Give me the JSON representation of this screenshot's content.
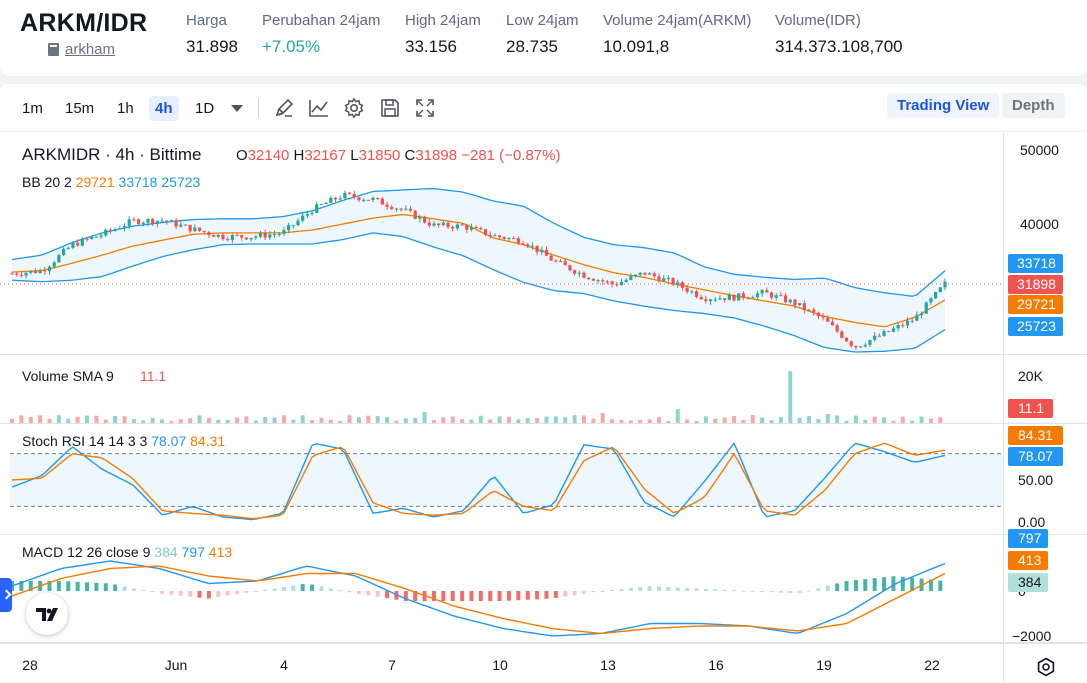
{
  "ticker": {
    "symbol": "ARKM/IDR",
    "token_link": "arkham",
    "stats": [
      {
        "label": "Harga",
        "value": "31.898",
        "up": false
      },
      {
        "label": "Perubahan 24jam",
        "value": "+7.05%",
        "up": true
      },
      {
        "label": "High 24jam",
        "value": "33.156",
        "up": false
      },
      {
        "label": "Low 24jam",
        "value": "28.735",
        "up": false
      },
      {
        "label": "Volume 24jam(ARKM)",
        "value": "10.091,8",
        "up": false
      },
      {
        "label": "Volume(IDR)",
        "value": "314.373.108,700",
        "up": false
      }
    ]
  },
  "toolbar": {
    "timeframes": [
      "1m",
      "15m",
      "1h",
      "4h",
      "1D"
    ],
    "active_timeframe": "4h",
    "icons": [
      "draw-icon",
      "indicator-icon",
      "settings-icon",
      "save-icon",
      "fullscreen-icon"
    ],
    "trading_view_label": "Trading View",
    "depth_label": "Depth"
  },
  "colors": {
    "up": "#26a69a",
    "down": "#ef5350",
    "bb_basis": "#f57c00",
    "bb_band": "#2196f3",
    "stoch_k": "#2196f3",
    "stoch_d": "#f57c00",
    "accent": "#2962ff"
  },
  "chart_data": {
    "type": "candlestick",
    "main": {
      "title": "ARKMIDR · 4h · Bittime",
      "ohlc": {
        "o_label": "O",
        "o": "32140",
        "h_label": "H",
        "h": "32167",
        "l_label": "L",
        "l": "31850",
        "c_label": "C",
        "c": "31898",
        "change": "−281 (−0.87%)"
      },
      "y_ticks": [
        "50000",
        "40000"
      ],
      "y_tick_values": [
        50000,
        40000
      ],
      "badges": [
        {
          "text": "33718",
          "value": 33718,
          "color": "#2196f3"
        },
        {
          "text": "31898",
          "value": 31898,
          "color": "#ef5350"
        },
        {
          "text": "29721",
          "value": 29721,
          "color": "#f57c00"
        },
        {
          "text": "25723",
          "value": 25723,
          "color": "#2196f3"
        }
      ],
      "bb": {
        "label": "BB 20 2",
        "basis": "29721",
        "upper": "33718",
        "lower": "25723"
      },
      "bb_upper_series": [
        35200,
        35800,
        37500,
        38800,
        39700,
        40200,
        40600,
        40700,
        40700,
        41000,
        41800,
        43200,
        44400,
        44600,
        44800,
        44300,
        43100,
        42400,
        40100,
        38200,
        37200,
        36800,
        36100,
        34200,
        33200,
        32800,
        32500,
        32700,
        31400,
        30700,
        30200,
        33700
      ],
      "bb_basis_series": [
        33500,
        33700,
        34700,
        35800,
        37000,
        37800,
        38600,
        38800,
        38800,
        38800,
        39200,
        40000,
        40800,
        41300,
        40700,
        40100,
        38100,
        37200,
        35800,
        34500,
        33400,
        32800,
        31900,
        31100,
        30300,
        29600,
        28900,
        27500,
        26700,
        26100,
        27400,
        29721
      ],
      "bb_lower_series": [
        32400,
        32200,
        32400,
        32900,
        34300,
        35600,
        36500,
        37200,
        37300,
        37300,
        37300,
        37900,
        38800,
        38300,
        36900,
        35700,
        33800,
        32100,
        31000,
        30600,
        29600,
        28900,
        28300,
        27900,
        27300,
        26200,
        24900,
        23300,
        22700,
        22800,
        23200,
        25723
      ],
      "close_series": [
        33300,
        33700,
        37200,
        38600,
        40400,
        40500,
        39300,
        38300,
        38300,
        38800,
        42000,
        43900,
        43300,
        41900,
        39800,
        39700,
        38400,
        37700,
        35000,
        33100,
        31800,
        33400,
        32000,
        30000,
        30100,
        30700,
        29300,
        27000,
        23400,
        25200,
        27200,
        31898
      ]
    },
    "volume": {
      "label": "Volume SMA 9",
      "value": "11.1",
      "y_tick": "20K",
      "badge": "11.1"
    },
    "stoch_rsi": {
      "label": "Stoch RSI 14 14 3 3",
      "k": "78.07",
      "d": "84.31",
      "y_ticks": [
        "50.00",
        "0.00"
      ],
      "upper_band": 80,
      "lower_band": 20,
      "k_series": [
        42,
        55,
        88,
        62,
        45,
        10,
        20,
        8,
        5,
        12,
        92,
        85,
        12,
        18,
        8,
        15,
        55,
        12,
        22,
        90,
        85,
        25,
        8,
        48,
        92,
        8,
        15,
        52,
        92,
        82,
        70,
        78
      ],
      "d_series": [
        50,
        52,
        80,
        75,
        52,
        15,
        12,
        10,
        6,
        10,
        78,
        88,
        24,
        12,
        10,
        12,
        38,
        20,
        15,
        72,
        88,
        40,
        12,
        30,
        80,
        15,
        10,
        38,
        80,
        92,
        78,
        84
      ]
    },
    "macd": {
      "label": "MACD 12 26 close 9",
      "hist": "384",
      "macd": "797",
      "signal": "413",
      "y_ticks": [
        "0",
        "−2000"
      ],
      "badges": [
        "797",
        "413",
        "384"
      ]
    },
    "x_ticks": [
      "28",
      "Jun",
      "4",
      "7",
      "10",
      "13",
      "16",
      "19",
      "22"
    ]
  }
}
